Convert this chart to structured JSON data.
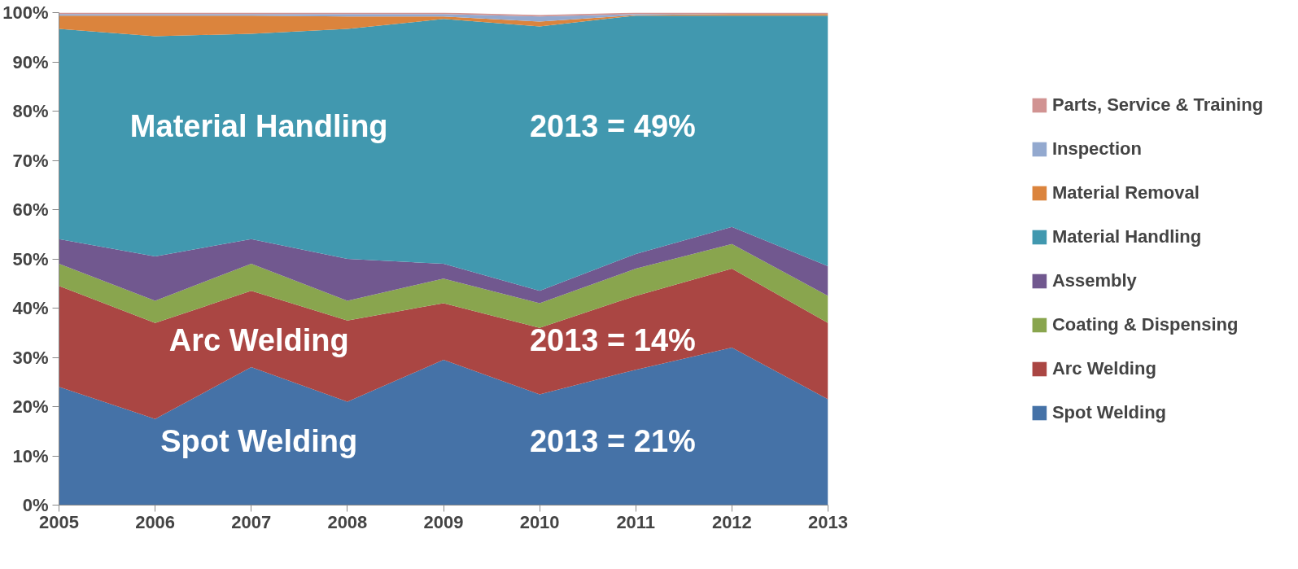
{
  "chart_data": {
    "type": "area",
    "stacked": true,
    "x": [
      2005,
      2006,
      2007,
      2008,
      2009,
      2010,
      2011,
      2012,
      2013
    ],
    "series": [
      {
        "name": "Spot Welding",
        "color": "#4572a7",
        "values": [
          24,
          17.5,
          28,
          21,
          29.5,
          22.5,
          27.5,
          32,
          21.5
        ]
      },
      {
        "name": "Arc Welding",
        "color": "#aa4643",
        "values": [
          20.5,
          19.5,
          15.5,
          16.5,
          11.5,
          13.5,
          15,
          16,
          15.5
        ]
      },
      {
        "name": "Coating & Dispensing",
        "color": "#89a54e",
        "values": [
          4.5,
          4.5,
          5.5,
          4,
          5,
          5,
          5.5,
          5,
          5.5
        ]
      },
      {
        "name": "Assembly",
        "color": "#71588f",
        "values": [
          5,
          9,
          5,
          8.5,
          3,
          2.5,
          3,
          3.5,
          6
        ]
      },
      {
        "name": "Material Handling",
        "color": "#4198af",
        "values": [
          42.7,
          44.7,
          41.7,
          46.7,
          49.7,
          53.7,
          48.4,
          42.9,
          50.9
        ]
      },
      {
        "name": "Material Removal",
        "color": "#db843d",
        "values": [
          2.7,
          4.2,
          3.7,
          2.5,
          0.5,
          1,
          0.1,
          0.3,
          0.3
        ]
      },
      {
        "name": "Inspection",
        "color": "#93a9cf",
        "values": [
          0.3,
          0.3,
          0.3,
          0.5,
          0.5,
          1,
          0.2,
          0,
          0
        ]
      },
      {
        "name": "Parts, Service & Training",
        "color": "#d19392",
        "values": [
          0.3,
          0.3,
          0.3,
          0.3,
          0.3,
          0.3,
          0.3,
          0.3,
          0.3
        ]
      }
    ],
    "xlim": [
      2005,
      2013
    ],
    "xticks": [
      2005,
      2006,
      2007,
      2008,
      2009,
      2010,
      2011,
      2012,
      2013
    ],
    "ylim": [
      0,
      100
    ],
    "yticks": [
      {
        "value": 0,
        "label": "0%"
      },
      {
        "value": 10,
        "label": "10%"
      },
      {
        "value": 20,
        "label": "20%"
      },
      {
        "value": 30,
        "label": "30%"
      },
      {
        "value": 40,
        "label": "40%"
      },
      {
        "value": 50,
        "label": "50%"
      },
      {
        "value": 60,
        "label": "60%"
      },
      {
        "value": 70,
        "label": "70%"
      },
      {
        "value": 80,
        "label": "80%"
      },
      {
        "value": 90,
        "label": "90%"
      },
      {
        "value": 100,
        "label": "100%"
      }
    ],
    "grid": false,
    "legend": "right",
    "annotations": [
      "Material Handling",
      "2013 = 49%",
      "Arc Welding",
      "2013 = 14%",
      "Spot Welding",
      "2013 = 21%"
    ]
  }
}
